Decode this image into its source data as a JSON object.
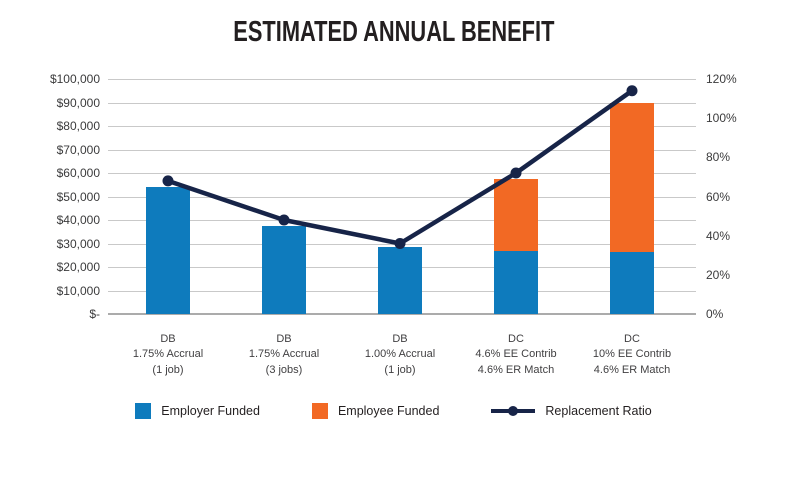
{
  "title": "ESTIMATED ANNUAL BENEFIT",
  "colors": {
    "employer_bar": "#0E7BBD",
    "employee_bar": "#F26924",
    "ratio_line": "#172448",
    "gridline": "#C9C9C9",
    "axis_line": "#ABABAB",
    "text": "#231F20"
  },
  "chart_data": {
    "type": "bar",
    "subtype": "stacked-bar-with-line-overlay",
    "title": "ESTIMATED ANNUAL BENEFIT",
    "grid": true,
    "legend_position": "bottom",
    "categories": [
      [
        "DB",
        "1.75% Accrual",
        "(1 job)"
      ],
      [
        "DB",
        "1.75% Accrual",
        "(3 jobs)"
      ],
      [
        "DB",
        "1.00% Accrual",
        "(1 job)"
      ],
      [
        "DC",
        "4.6% EE Contrib",
        "4.6% ER Match"
      ],
      [
        "DC",
        "10% EE Contrib",
        "4.6% ER Match"
      ]
    ],
    "series": [
      {
        "name": "Employer Funded",
        "kind": "bar",
        "axis": "left",
        "color": "#0E7BBD",
        "values": [
          54000,
          37500,
          28500,
          27000,
          26500
        ]
      },
      {
        "name": "Employee Funded",
        "kind": "bar",
        "axis": "left",
        "color": "#F26924",
        "values": [
          0,
          0,
          0,
          30500,
          63500
        ]
      },
      {
        "name": "Replacement Ratio",
        "kind": "line",
        "axis": "right",
        "color": "#172448",
        "values": [
          68,
          48,
          36,
          72,
          114
        ]
      }
    ],
    "left_axis": {
      "min": 0,
      "max": 100000,
      "ticks": [
        "$100,000",
        "$90,000",
        "$80,000",
        "$70,000",
        "$60,000",
        "$50,000",
        "$40,000",
        "$30,000",
        "$20,000",
        "$10,000",
        "$-"
      ]
    },
    "right_axis": {
      "min": 0,
      "max": 120,
      "ticks": [
        "120%",
        "100%",
        "80%",
        "60%",
        "40%",
        "20%",
        "0%"
      ]
    }
  }
}
